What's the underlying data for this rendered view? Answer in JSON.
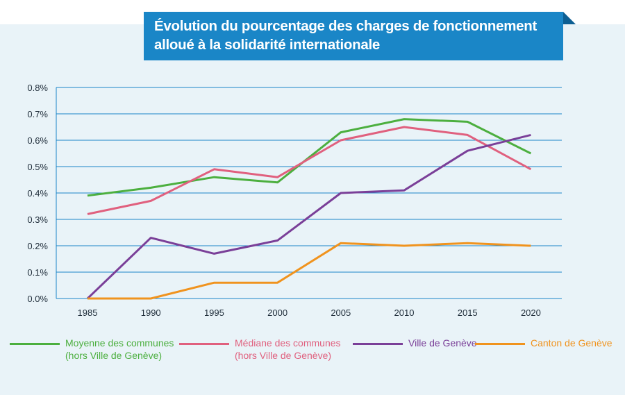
{
  "title": {
    "line1": "Évolution du pourcentage des charges de fonctionnement",
    "line2": "alloué à la solidarité internationale"
  },
  "chart_data": {
    "type": "line",
    "x": [
      1985,
      1990,
      1995,
      2000,
      2005,
      2010,
      2015,
      2020
    ],
    "ylim": [
      0,
      0.8
    ],
    "y_ticks": [
      "0.0%",
      "0.1%",
      "0.2%",
      "0.3%",
      "0.4%",
      "0.5%",
      "0.6%",
      "0.7%",
      "0.8%"
    ],
    "x_ticks": [
      "1985",
      "1990",
      "1995",
      "2000",
      "2005",
      "2010",
      "2015",
      "2020"
    ],
    "grid": "horizontal",
    "legend_position": "bottom",
    "series": [
      {
        "name": "Moyenne des communes\n(hors Ville de Genève)",
        "color": "#4caf3f",
        "values": [
          0.39,
          0.42,
          0.46,
          0.44,
          0.63,
          0.68,
          0.67,
          0.55
        ]
      },
      {
        "name": "Médiane des communes\n(hors Ville de Genève)",
        "color": "#e0607e",
        "values": [
          0.32,
          0.37,
          0.49,
          0.46,
          0.6,
          0.65,
          0.62,
          0.49
        ]
      },
      {
        "name": "Ville de Genève",
        "color": "#7a3f98",
        "values": [
          0.0,
          0.23,
          0.17,
          0.22,
          0.4,
          0.41,
          0.56,
          0.62
        ]
      },
      {
        "name": "Canton de Genève",
        "color": "#f0931e",
        "values": [
          0.0,
          0.0,
          0.06,
          0.06,
          0.21,
          0.2,
          0.21,
          0.2
        ]
      }
    ]
  },
  "colors": {
    "title_bg": "#1a86c7",
    "panel_bg": "#e9f3f8",
    "gridline": "#1a86c7"
  }
}
